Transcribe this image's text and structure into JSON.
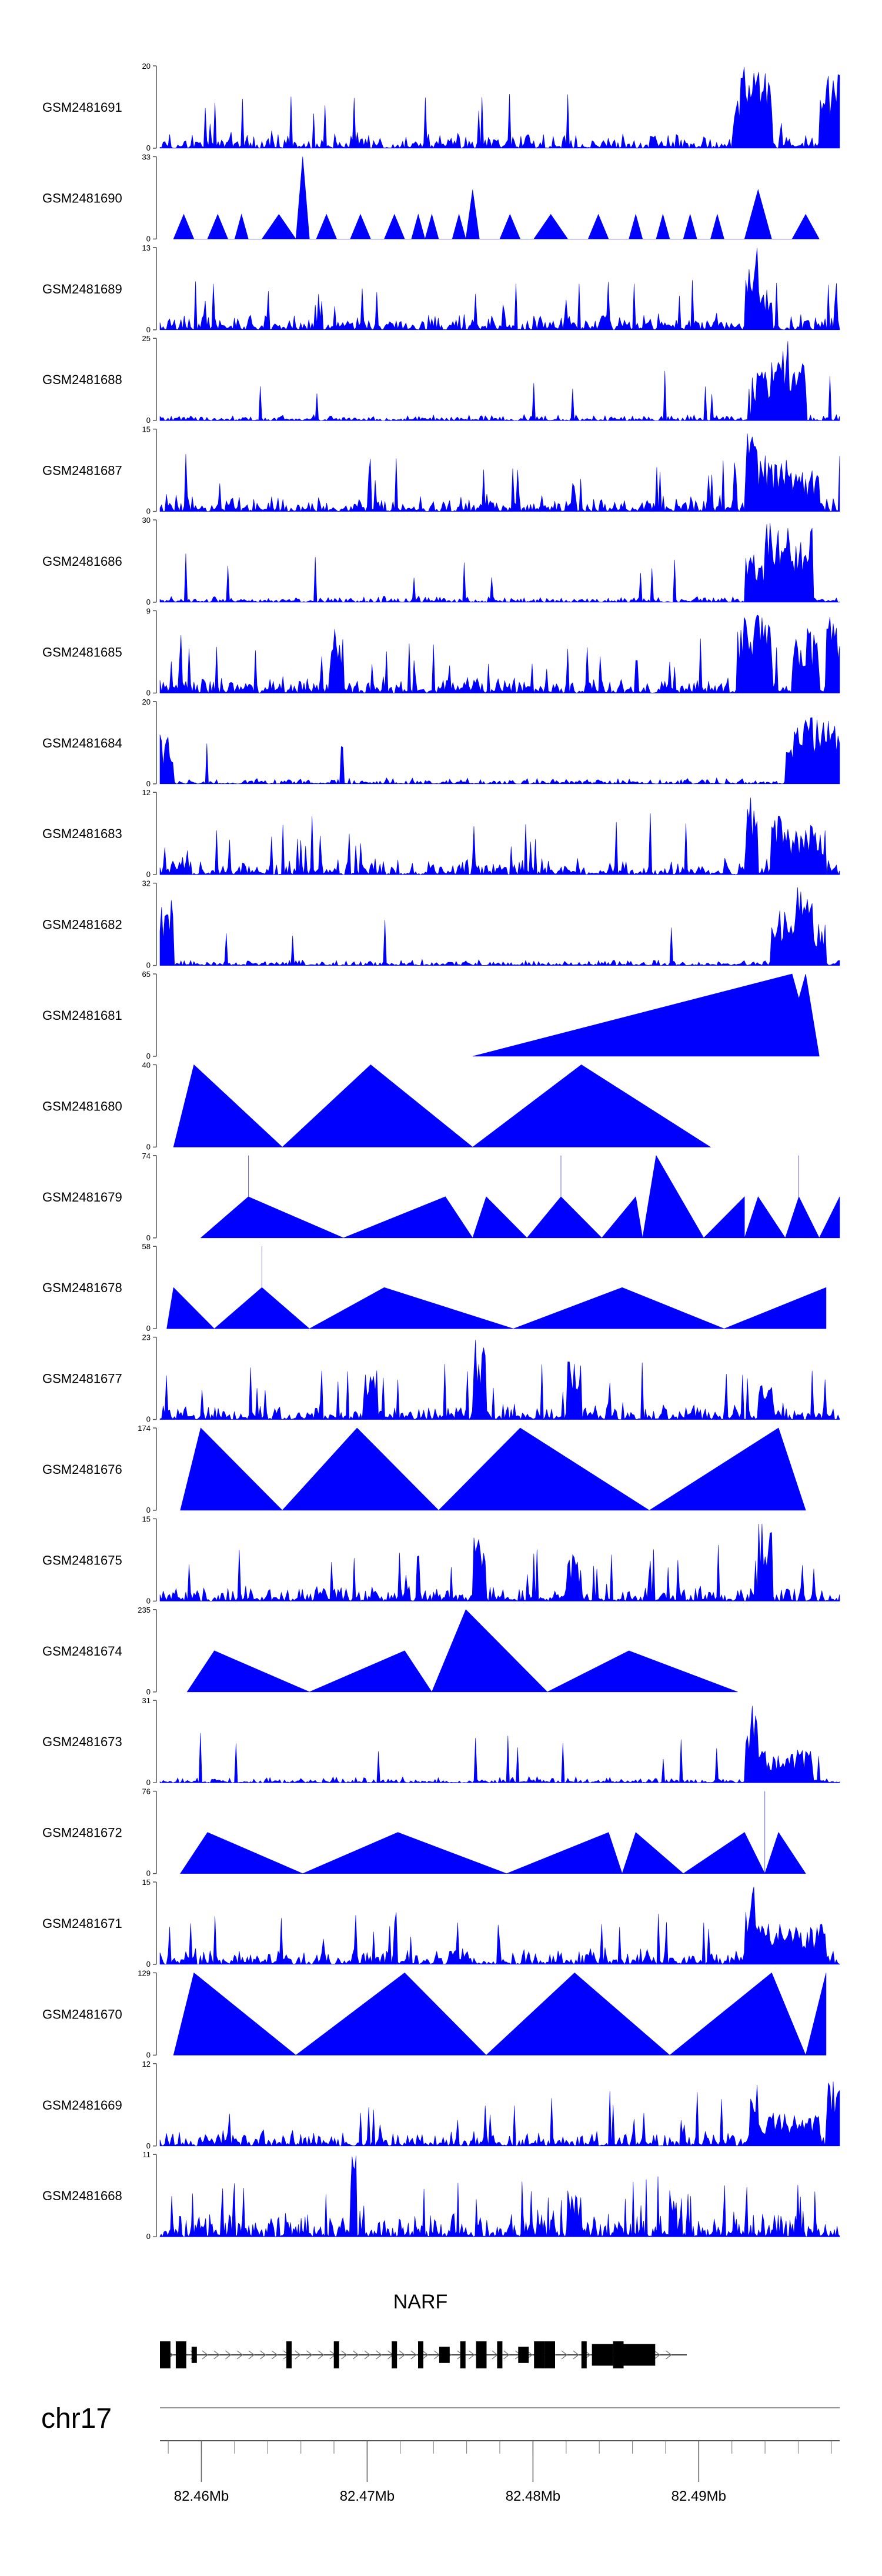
{
  "chart_data": {
    "type": "area",
    "title": "",
    "xlabel": "",
    "chromosome": "chr17",
    "region_mb": [
      82.4575,
      82.4985
    ],
    "tracks": [
      {
        "id": "GSM2481691",
        "ymax": 20,
        "style": "noise",
        "hot": [
          [
            0.85,
            0.9,
            1.0
          ],
          [
            0.97,
            1.0,
            1.0
          ]
        ]
      },
      {
        "id": "GSM2481690",
        "ymax": 33,
        "style": "sparse",
        "peaks": [
          [
            0.02,
            0.05,
            0.3
          ],
          [
            0.07,
            0.1,
            0.3
          ],
          [
            0.11,
            0.13,
            0.3
          ],
          [
            0.15,
            0.2,
            0.3
          ],
          [
            0.2,
            0.22,
            1.0
          ],
          [
            0.23,
            0.26,
            0.3
          ],
          [
            0.28,
            0.31,
            0.3
          ],
          [
            0.33,
            0.36,
            0.3
          ],
          [
            0.37,
            0.39,
            0.3
          ],
          [
            0.39,
            0.41,
            0.3
          ],
          [
            0.43,
            0.45,
            0.3
          ],
          [
            0.45,
            0.47,
            0.6
          ],
          [
            0.5,
            0.53,
            0.3
          ],
          [
            0.55,
            0.6,
            0.3
          ],
          [
            0.63,
            0.66,
            0.3
          ],
          [
            0.69,
            0.71,
            0.3
          ],
          [
            0.73,
            0.75,
            0.3
          ],
          [
            0.77,
            0.79,
            0.3
          ],
          [
            0.81,
            0.83,
            0.3
          ],
          [
            0.86,
            0.9,
            0.6
          ],
          [
            0.93,
            0.97,
            0.3
          ]
        ]
      },
      {
        "id": "GSM2481689",
        "ymax": 13,
        "style": "noise",
        "hot": [
          [
            0.86,
            0.88,
            1.0
          ],
          [
            0.88,
            0.9,
            0.5
          ]
        ]
      },
      {
        "id": "GSM2481688",
        "ymax": 25,
        "style": "noise_low",
        "hot": [
          [
            0.87,
            0.9,
            0.6
          ],
          [
            0.9,
            0.93,
            1.0
          ],
          [
            0.93,
            0.95,
            0.7
          ]
        ]
      },
      {
        "id": "GSM2481687",
        "ymax": 15,
        "style": "noise",
        "hot": [
          [
            0.86,
            0.88,
            1.0
          ],
          [
            0.88,
            0.93,
            0.7
          ],
          [
            0.93,
            0.97,
            0.5
          ]
        ]
      },
      {
        "id": "GSM2481686",
        "ymax": 30,
        "style": "noise_low",
        "hot": [
          [
            0.86,
            0.89,
            0.6
          ],
          [
            0.89,
            0.92,
            1.0
          ],
          [
            0.92,
            0.94,
            0.9
          ],
          [
            0.94,
            0.96,
            0.9
          ]
        ]
      },
      {
        "id": "GSM2481685",
        "ymax": 9,
        "style": "noise",
        "hot": [
          [
            0.25,
            0.27,
            0.8
          ],
          [
            0.85,
            0.9,
            1.0
          ],
          [
            0.93,
            0.97,
            0.8
          ],
          [
            0.98,
            1.0,
            1.0
          ]
        ]
      },
      {
        "id": "GSM2481684",
        "ymax": 20,
        "style": "noise_low",
        "hot": [
          [
            0.0,
            0.02,
            0.6
          ],
          [
            0.92,
            0.95,
            0.7
          ],
          [
            0.95,
            0.98,
            1.0
          ],
          [
            0.98,
            1.0,
            0.9
          ]
        ]
      },
      {
        "id": "GSM2481683",
        "ymax": 12,
        "style": "noise",
        "hot": [
          [
            0.86,
            0.88,
            1.0
          ],
          [
            0.9,
            0.92,
            0.8
          ],
          [
            0.92,
            0.98,
            0.6
          ]
        ]
      },
      {
        "id": "GSM2481682",
        "ymax": 32,
        "style": "noise_low",
        "hot": [
          [
            0.0,
            0.02,
            0.8
          ],
          [
            0.9,
            0.93,
            0.7
          ],
          [
            0.93,
            0.96,
            1.0
          ],
          [
            0.96,
            0.98,
            0.6
          ]
        ]
      },
      {
        "id": "GSM2481681",
        "ymax": 65,
        "style": "poly",
        "points": [
          [
            0.46,
            0
          ],
          [
            0.93,
            1.0
          ],
          [
            0.94,
            0.7
          ],
          [
            0.95,
            1.0
          ],
          [
            0.97,
            0
          ]
        ]
      },
      {
        "id": "GSM2481680",
        "ymax": 40,
        "style": "tri",
        "peaks": [
          [
            0.02,
            0.05,
            0.18,
            1.0
          ],
          [
            0.18,
            0.31,
            0.46,
            1.0
          ],
          [
            0.46,
            0.62,
            0.81,
            1.0
          ]
        ]
      },
      {
        "id": "GSM2481679",
        "ymax": 74,
        "style": "tri",
        "peaks": [
          [
            0.06,
            0.13,
            0.27,
            0.5
          ],
          [
            0.13,
            0.13,
            0.13,
            1.0
          ],
          [
            0.27,
            0.42,
            0.46,
            0.5
          ],
          [
            0.46,
            0.48,
            0.54,
            0.5
          ],
          [
            0.54,
            0.59,
            0.65,
            0.5
          ],
          [
            0.59,
            0.59,
            0.59,
            1.0
          ],
          [
            0.65,
            0.7,
            0.71,
            0.5
          ],
          [
            0.71,
            0.73,
            0.8,
            1.0
          ],
          [
            0.8,
            0.86,
            0.86,
            0.5
          ],
          [
            0.86,
            0.88,
            0.92,
            0.5
          ],
          [
            0.92,
            0.94,
            0.97,
            0.5
          ],
          [
            0.94,
            0.94,
            0.94,
            1.0
          ],
          [
            0.97,
            1.0,
            1.0,
            0.5
          ]
        ]
      },
      {
        "id": "GSM2481678",
        "ymax": 58,
        "style": "tri",
        "peaks": [
          [
            0.01,
            0.02,
            0.08,
            0.5
          ],
          [
            0.08,
            0.15,
            0.22,
            0.5
          ],
          [
            0.15,
            0.15,
            0.15,
            1.0
          ],
          [
            0.22,
            0.33,
            0.52,
            0.5
          ],
          [
            0.52,
            0.68,
            0.83,
            0.5
          ],
          [
            0.83,
            0.98,
            0.98,
            0.5
          ]
        ]
      },
      {
        "id": "GSM2481677",
        "ymax": 23,
        "style": "noise",
        "hot": [
          [
            0.3,
            0.32,
            0.6
          ],
          [
            0.46,
            0.48,
            1.0
          ],
          [
            0.6,
            0.62,
            0.8
          ],
          [
            0.88,
            0.9,
            0.5
          ]
        ]
      },
      {
        "id": "GSM2481676",
        "ymax": 174,
        "style": "tri",
        "peaks": [
          [
            0.03,
            0.06,
            0.18,
            1.0
          ],
          [
            0.18,
            0.29,
            0.41,
            1.0
          ],
          [
            0.41,
            0.53,
            0.72,
            1.0
          ],
          [
            0.72,
            0.91,
            0.95,
            1.0
          ]
        ]
      },
      {
        "id": "GSM2481675",
        "ymax": 15,
        "style": "noise",
        "hot": [
          [
            0.46,
            0.48,
            0.9
          ],
          [
            0.6,
            0.62,
            0.6
          ],
          [
            0.88,
            0.9,
            1.0
          ]
        ]
      },
      {
        "id": "GSM2481674",
        "ymax": 235,
        "style": "tri",
        "peaks": [
          [
            0.04,
            0.08,
            0.22,
            0.5
          ],
          [
            0.22,
            0.36,
            0.4,
            0.5
          ],
          [
            0.4,
            0.45,
            0.57,
            1.0
          ],
          [
            0.57,
            0.69,
            0.85,
            0.5
          ]
        ]
      },
      {
        "id": "GSM2481673",
        "ymax": 31,
        "style": "noise_low",
        "hot": [
          [
            0.86,
            0.88,
            1.0
          ],
          [
            0.88,
            0.96,
            0.4
          ]
        ]
      },
      {
        "id": "GSM2481672",
        "ymax": 76,
        "style": "tri",
        "peaks": [
          [
            0.03,
            0.07,
            0.21,
            0.5
          ],
          [
            0.21,
            0.35,
            0.51,
            0.5
          ],
          [
            0.51,
            0.66,
            0.68,
            0.5
          ],
          [
            0.68,
            0.7,
            0.77,
            0.5
          ],
          [
            0.77,
            0.86,
            0.89,
            0.5
          ],
          [
            0.89,
            0.89,
            0.89,
            1.0
          ],
          [
            0.89,
            0.91,
            0.95,
            0.5
          ]
        ]
      },
      {
        "id": "GSM2481671",
        "ymax": 15,
        "style": "noise",
        "hot": [
          [
            0.86,
            0.88,
            1.0
          ],
          [
            0.88,
            0.98,
            0.5
          ]
        ]
      },
      {
        "id": "GSM2481670",
        "ymax": 129,
        "style": "tri",
        "peaks": [
          [
            0.02,
            0.05,
            0.2,
            1.0
          ],
          [
            0.2,
            0.36,
            0.48,
            1.0
          ],
          [
            0.48,
            0.61,
            0.75,
            1.0
          ],
          [
            0.75,
            0.9,
            0.95,
            1.0
          ],
          [
            0.95,
            0.98,
            0.98,
            1.0
          ]
        ]
      },
      {
        "id": "GSM2481669",
        "ymax": 12,
        "style": "noise",
        "hot": [
          [
            0.87,
            0.88,
            1.0
          ],
          [
            0.88,
            0.97,
            0.4
          ],
          [
            0.98,
            1.0,
            0.8
          ]
        ]
      },
      {
        "id": "GSM2481668",
        "ymax": 11,
        "style": "noise_dense",
        "hot": [
          [
            0.28,
            0.29,
            1.0
          ],
          [
            0.6,
            0.62,
            0.6
          ],
          [
            0.75,
            0.76,
            0.6
          ]
        ]
      }
    ],
    "gene": {
      "name": "NARF",
      "exons": [
        [
          0.0,
          0.02,
          1.0
        ],
        [
          0.03,
          0.05,
          1.0
        ],
        [
          0.06,
          0.07,
          0.6
        ],
        [
          0.24,
          0.25,
          1.0
        ],
        [
          0.33,
          0.34,
          1.0
        ],
        [
          0.44,
          0.45,
          1.0
        ],
        [
          0.49,
          0.5,
          1.0
        ],
        [
          0.53,
          0.55,
          0.6
        ],
        [
          0.57,
          0.58,
          1.0
        ],
        [
          0.6,
          0.62,
          1.0
        ],
        [
          0.64,
          0.65,
          1.0
        ],
        [
          0.68,
          0.7,
          0.6
        ],
        [
          0.71,
          0.73,
          1.0
        ],
        [
          0.73,
          0.75,
          1.0
        ],
        [
          0.8,
          0.81,
          1.0
        ],
        [
          0.82,
          0.86,
          0.8
        ],
        [
          0.86,
          0.88,
          1.0
        ],
        [
          0.88,
          0.94,
          0.8
        ]
      ]
    },
    "axis": {
      "ticks_mb": [
        82.46,
        82.47,
        82.48,
        82.49
      ],
      "tick_labels": [
        "82.46Mb",
        "82.47Mb",
        "82.48Mb",
        "82.49Mb"
      ],
      "minor_step_mb": 0.002
    }
  },
  "colors": {
    "fill": "#0000ff",
    "text": "#000000",
    "axis": "#555555",
    "gene": "#000000",
    "background": "#ffffff"
  }
}
